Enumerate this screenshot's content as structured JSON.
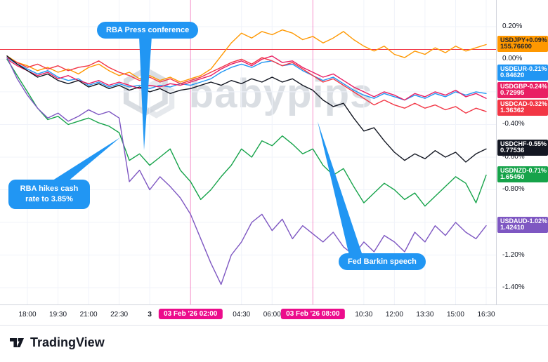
{
  "watermark": {
    "text": "babypips"
  },
  "branding": {
    "logo_text": "TradingView"
  },
  "colors": {
    "callout_blue": "#2196f3",
    "marker_pink": "#ec0c8c",
    "price_line_red": "#f23645",
    "axis_border": "#d1d4dc"
  },
  "chart_data": {
    "type": "line",
    "mode": "percent-change-comparison",
    "title": "",
    "xlabel": "time",
    "ylabel": "percent change",
    "ylim": [
      -1.503,
      0.363
    ],
    "grid": true,
    "legend_position": "right-axis-badges",
    "x_start_time": "17:00",
    "x_step_minutes": 30,
    "x_ticks": [
      {
        "label": "18:00",
        "i": 2
      },
      {
        "label": "19:30",
        "i": 5
      },
      {
        "label": "21:00",
        "i": 8
      },
      {
        "label": "22:30",
        "i": 11
      },
      {
        "label": "3",
        "i": 14,
        "emphasis": true
      },
      {
        "label": "04:30",
        "i": 23
      },
      {
        "label": "06:00",
        "i": 26
      },
      {
        "label": "10:30",
        "i": 35
      },
      {
        "label": "12:00",
        "i": 38
      },
      {
        "label": "13:30",
        "i": 41
      },
      {
        "label": "15:00",
        "i": 44
      },
      {
        "label": "16:30",
        "i": 47
      }
    ],
    "y_ticks": [
      {
        "label": "0.20%",
        "value": 0.2
      },
      {
        "label": "0.00%",
        "value": 0.0
      },
      {
        "label": "-0.20%",
        "value": -0.2
      },
      {
        "label": "-0.40%",
        "value": -0.4
      },
      {
        "label": "-0.60%",
        "value": -0.6
      },
      {
        "label": "-0.80%",
        "value": -0.8
      },
      {
        "label": "-1.00%",
        "value": -1.0
      },
      {
        "label": "-1.20%",
        "value": -1.2
      },
      {
        "label": "-1.40%",
        "value": -1.4
      }
    ],
    "markers": [
      {
        "label": "03 Feb '26 02:00",
        "i": 18
      },
      {
        "label": "03 Feb '26 08:00",
        "i": 30
      }
    ],
    "price_line": {
      "value": 0.06,
      "color": "#f23645"
    },
    "annotations": [
      {
        "id": "rba-press",
        "text": "RBA Press conference"
      },
      {
        "id": "rba-hikes",
        "text": "RBA hikes cash rate to 3.85%"
      },
      {
        "id": "fed-barkin",
        "text": "Fed Barkin speech"
      }
    ],
    "series": [
      {
        "symbol": "USDJPY",
        "change": "+0.09%",
        "price": "155.76600",
        "color": "#ff9800",
        "label_text": "#1e222d",
        "values": [
          0.02,
          -0.02,
          -0.04,
          -0.07,
          -0.05,
          -0.08,
          -0.06,
          -0.09,
          -0.05,
          -0.03,
          -0.07,
          -0.1,
          -0.08,
          -0.12,
          -0.1,
          -0.13,
          -0.11,
          -0.14,
          -0.12,
          -0.1,
          -0.06,
          0.02,
          0.1,
          0.16,
          0.13,
          0.17,
          0.15,
          0.18,
          0.16,
          0.12,
          0.14,
          0.1,
          0.13,
          0.17,
          0.12,
          0.08,
          0.05,
          0.08,
          0.03,
          0.01,
          0.05,
          0.03,
          0.07,
          0.04,
          0.08,
          0.05,
          0.07,
          0.09
        ]
      },
      {
        "symbol": "USDEUR",
        "change": "-0.21%",
        "price": "0.84620",
        "color": "#2196f3",
        "label_text": "#ffffff",
        "values": [
          0.01,
          -0.03,
          -0.06,
          -0.09,
          -0.07,
          -0.11,
          -0.13,
          -0.12,
          -0.16,
          -0.14,
          -0.17,
          -0.15,
          -0.17,
          -0.16,
          -0.18,
          -0.16,
          -0.17,
          -0.15,
          -0.16,
          -0.14,
          -0.12,
          -0.08,
          -0.05,
          -0.03,
          -0.05,
          -0.02,
          -0.01,
          -0.04,
          -0.03,
          -0.07,
          -0.1,
          -0.13,
          -0.11,
          -0.15,
          -0.19,
          -0.22,
          -0.24,
          -0.21,
          -0.23,
          -0.25,
          -0.22,
          -0.24,
          -0.21,
          -0.23,
          -0.2,
          -0.22,
          -0.2,
          -0.21
        ]
      },
      {
        "symbol": "USDGBP",
        "change": "-0.24%",
        "price": "0.72995",
        "color": "#e91e63",
        "label_text": "#ffffff",
        "values": [
          0.0,
          -0.04,
          -0.07,
          -0.1,
          -0.08,
          -0.12,
          -0.1,
          -0.13,
          -0.15,
          -0.13,
          -0.16,
          -0.14,
          -0.16,
          -0.18,
          -0.16,
          -0.17,
          -0.15,
          -0.16,
          -0.14,
          -0.12,
          -0.1,
          -0.06,
          -0.03,
          -0.01,
          -0.04,
          0.0,
          0.02,
          -0.02,
          -0.01,
          -0.05,
          -0.08,
          -0.11,
          -0.09,
          -0.13,
          -0.17,
          -0.2,
          -0.23,
          -0.2,
          -0.22,
          -0.25,
          -0.21,
          -0.23,
          -0.2,
          -0.22,
          -0.19,
          -0.23,
          -0.21,
          -0.24
        ]
      },
      {
        "symbol": "USDCAD",
        "change": "-0.32%",
        "price": "1.36362",
        "color": "#f23645",
        "label_text": "#ffffff",
        "values": [
          0.01,
          -0.02,
          -0.05,
          -0.03,
          -0.06,
          -0.04,
          -0.07,
          -0.05,
          -0.04,
          -0.01,
          -0.05,
          -0.08,
          -0.1,
          -0.13,
          -0.11,
          -0.14,
          -0.12,
          -0.15,
          -0.13,
          -0.11,
          -0.08,
          -0.05,
          -0.02,
          0.0,
          -0.03,
          0.01,
          -0.01,
          -0.04,
          -0.02,
          -0.06,
          -0.1,
          -0.14,
          -0.12,
          -0.16,
          -0.2,
          -0.24,
          -0.28,
          -0.25,
          -0.28,
          -0.3,
          -0.27,
          -0.3,
          -0.28,
          -0.31,
          -0.29,
          -0.33,
          -0.3,
          -0.32
        ]
      },
      {
        "symbol": "USDCHF",
        "change": "-0.55%",
        "price": "0.77536",
        "color": "#131722",
        "label_text": "#ffffff",
        "values": [
          0.02,
          -0.03,
          -0.07,
          -0.11,
          -0.09,
          -0.13,
          -0.15,
          -0.13,
          -0.17,
          -0.15,
          -0.18,
          -0.16,
          -0.19,
          -0.17,
          -0.2,
          -0.18,
          -0.21,
          -0.19,
          -0.18,
          -0.16,
          -0.14,
          -0.16,
          -0.13,
          -0.15,
          -0.12,
          -0.14,
          -0.11,
          -0.14,
          -0.12,
          -0.16,
          -0.19,
          -0.25,
          -0.29,
          -0.27,
          -0.36,
          -0.44,
          -0.42,
          -0.5,
          -0.57,
          -0.62,
          -0.58,
          -0.61,
          -0.56,
          -0.6,
          -0.57,
          -0.63,
          -0.58,
          -0.55
        ]
      },
      {
        "symbol": "USDNZD",
        "change": "-0.71%",
        "price": "1.65450",
        "color": "#16a34a",
        "label_text": "#ffffff",
        "values": [
          0.0,
          -0.1,
          -0.2,
          -0.3,
          -0.37,
          -0.35,
          -0.4,
          -0.38,
          -0.36,
          -0.39,
          -0.41,
          -0.45,
          -0.62,
          -0.58,
          -0.65,
          -0.6,
          -0.55,
          -0.68,
          -0.75,
          -0.86,
          -0.8,
          -0.72,
          -0.65,
          -0.55,
          -0.6,
          -0.5,
          -0.53,
          -0.47,
          -0.52,
          -0.58,
          -0.55,
          -0.65,
          -0.71,
          -0.67,
          -0.78,
          -0.88,
          -0.82,
          -0.76,
          -0.8,
          -0.86,
          -0.82,
          -0.9,
          -0.84,
          -0.78,
          -0.72,
          -0.76,
          -0.88,
          -0.71
        ]
      },
      {
        "symbol": "USDAUD",
        "change": "-1.02%",
        "price": "1.42410",
        "color": "#7e57c2",
        "label_text": "#ffffff",
        "values": [
          0.01,
          -0.12,
          -0.22,
          -0.3,
          -0.36,
          -0.33,
          -0.38,
          -0.35,
          -0.31,
          -0.34,
          -0.32,
          -0.36,
          -0.75,
          -0.68,
          -0.8,
          -0.72,
          -0.78,
          -0.85,
          -0.95,
          -1.1,
          -1.25,
          -1.38,
          -1.2,
          -1.12,
          -1.0,
          -0.95,
          -1.05,
          -0.98,
          -1.1,
          -1.02,
          -1.07,
          -1.12,
          -1.06,
          -1.15,
          -1.2,
          -1.12,
          -1.18,
          -1.08,
          -1.12,
          -1.18,
          -1.06,
          -1.12,
          -1.02,
          -1.08,
          -1.0,
          -1.06,
          -1.1,
          -1.02
        ]
      }
    ]
  }
}
